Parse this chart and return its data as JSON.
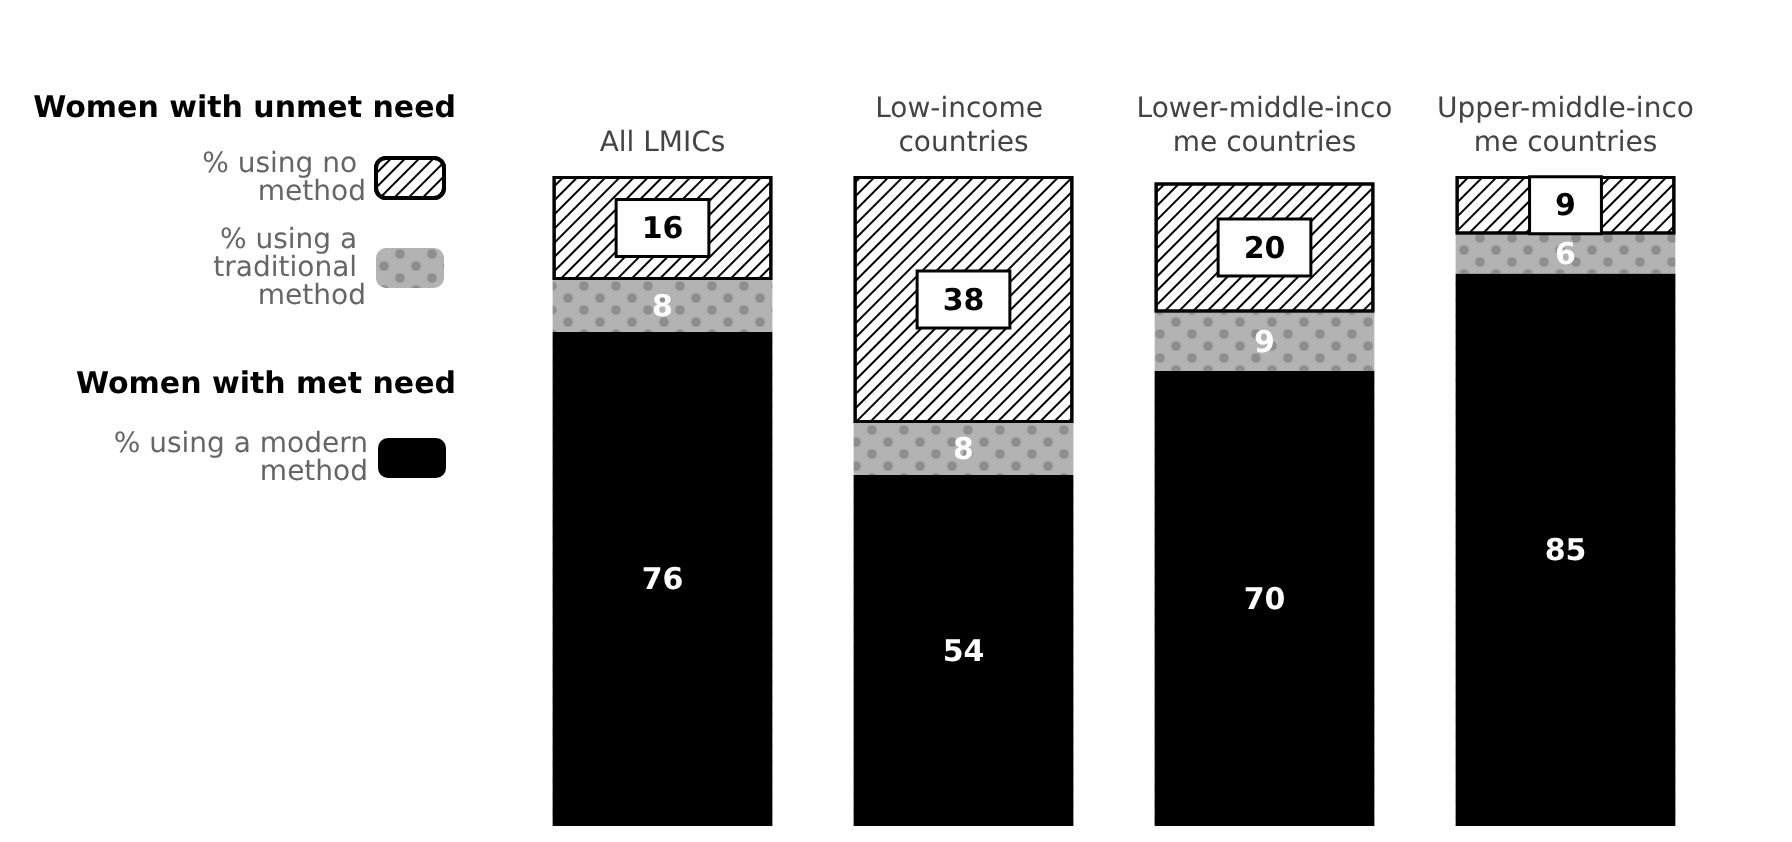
{
  "chart_data": {
    "type": "bar",
    "stacked": true,
    "categories": [
      "All LMICs",
      "Low-income countries",
      "Lower-middle-income countries",
      "Upper-middle-income countries"
    ],
    "series": [
      {
        "name": "% using a modern method",
        "color": "#000000",
        "values": [
          76,
          54,
          70,
          85
        ]
      },
      {
        "name": "% using a traditional method",
        "color": "#b3b3b3",
        "values": [
          8,
          8,
          9,
          6
        ]
      },
      {
        "name": "% using no method",
        "color": "#ffffff",
        "values": [
          16,
          38,
          20,
          9
        ]
      }
    ],
    "annotations": [
      "Women with unmet need",
      "Women with met need"
    ],
    "data_labels": true,
    "legend": "left"
  }
}
